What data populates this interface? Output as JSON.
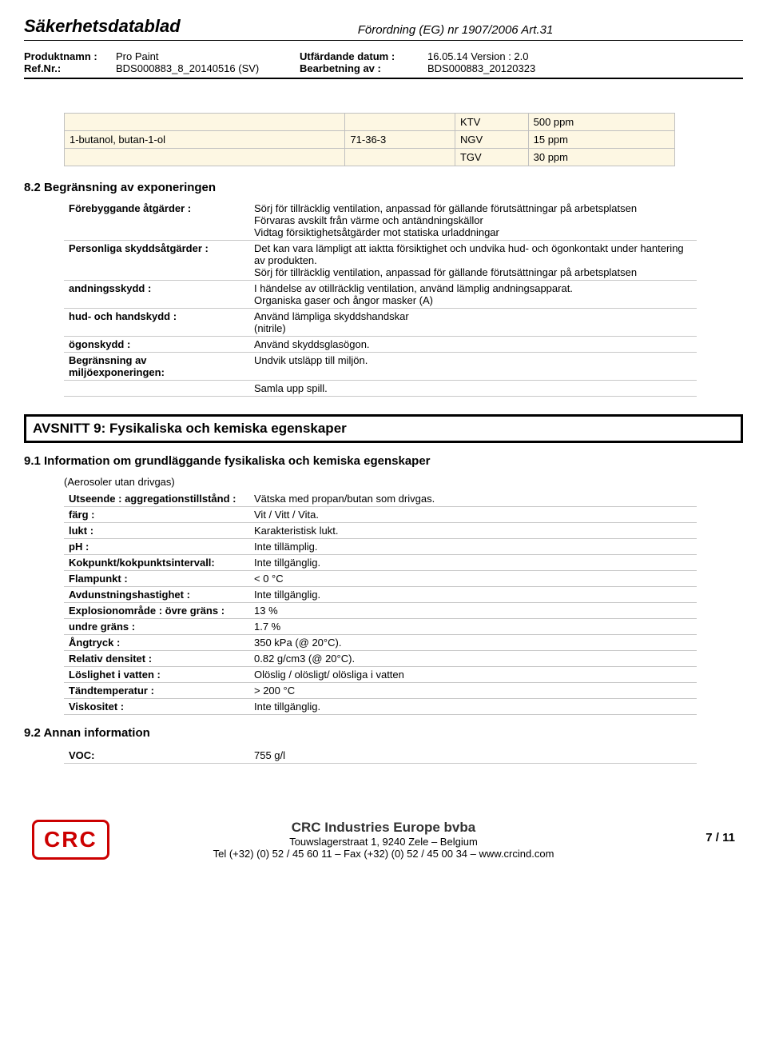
{
  "header": {
    "title": "Säkerhetsdatablad",
    "regulation": "Förordning (EG) nr 1907/2006 Art.31",
    "product_label": "Produktnamn :",
    "product": "Pro Paint",
    "ref_label": "Ref.Nr.:",
    "ref": "BDS000883_8_20140516 (SV)",
    "issue_label": "Utfärdande datum :",
    "issue": "16.05.14 Version : 2.0",
    "rev_label": "Bearbetning av :",
    "rev": "BDS000883_20120323"
  },
  "substance": {
    "r0": {
      "c1": "",
      "c2": "",
      "c3": "KTV",
      "c4": "500 ppm"
    },
    "r1": {
      "c1": "1-butanol, butan-1-ol",
      "c2": "71-36-3",
      "c3": "NGV",
      "c4": "15 ppm"
    },
    "r2": {
      "c1": "",
      "c2": "",
      "c3": "TGV",
      "c4": "30 ppm"
    }
  },
  "s82": {
    "title": "8.2 Begränsning av exponeringen",
    "rows": {
      "r0": {
        "k": "Förebyggande åtgärder :",
        "v": "Sörj för tillräcklig ventilation, anpassad för gällande förutsättningar på arbetsplatsen\nFörvaras avskilt från värme och antändningskällor\nVidtag försiktighetsåtgärder mot statiska urladdningar"
      },
      "r1": {
        "k": "Personliga skyddsåtgärder :",
        "v": "Det kan vara lämpligt att iaktta försiktighet och undvika hud- och ögonkontakt under hantering av produkten.\nSörj för tillräcklig ventilation, anpassad för gällande förutsättningar på arbetsplatsen"
      },
      "r2": {
        "k": "andningsskydd :",
        "v": "I händelse av otillräcklig ventilation, använd lämplig andningsapparat.\nOrganiska gaser och ångor masker (A)"
      },
      "r3": {
        "k": "hud- och handskydd :",
        "v": "Använd lämpliga skyddshandskar\n(nitrile)"
      },
      "r4": {
        "k": "ögonskydd :",
        "v": "Använd skyddsglasögon."
      },
      "r5": {
        "k": "Begränsning av miljöexponeringen:",
        "v": "Undvik utsläpp till miljön."
      },
      "r6": {
        "k": "",
        "v": "Samla upp spill."
      }
    }
  },
  "s9": {
    "title": "AVSNITT 9: Fysikaliska och kemiska egenskaper",
    "sub1": "9.1 Information om grundläggande fysikaliska och kemiska egenskaper",
    "note": "(Aerosoler utan drivgas)",
    "rows": {
      "r0": {
        "k": "Utseende : aggregationstillstånd :",
        "v": "Vätska med propan/butan som drivgas."
      },
      "r1": {
        "k": "färg :",
        "v": "Vit / Vitt / Vita."
      },
      "r2": {
        "k": "lukt :",
        "v": "Karakteristisk lukt."
      },
      "r3": {
        "k": "pH :",
        "v": "Inte tillämplig."
      },
      "r4": {
        "k": "Kokpunkt/kokpunktsintervall:",
        "v": "Inte tillgänglig."
      },
      "r5": {
        "k": "Flampunkt :",
        "v": "< 0 °C"
      },
      "r6": {
        "k": "Avdunstningshastighet :",
        "v": "Inte tillgänglig."
      },
      "r7": {
        "k": "Explosionområde : övre gräns :",
        "v": "13 %"
      },
      "r8": {
        "k": "undre gräns :",
        "v": "1.7 %"
      },
      "r9": {
        "k": "Ångtryck :",
        "v": "350 kPa (@ 20°C)."
      },
      "r10": {
        "k": "Relativ densitet :",
        "v": "0.82 g/cm3 (@ 20°C)."
      },
      "r11": {
        "k": "Löslighet i vatten :",
        "v": "Olöslig / olösligt/ olösliga i vatten"
      },
      "r12": {
        "k": "Tändtemperatur :",
        "v": "> 200 °C"
      },
      "r13": {
        "k": "Viskositet :",
        "v": "Inte tillgänglig."
      }
    },
    "sub2": "9.2 Annan information",
    "voc": {
      "k": "VOC:",
      "v": "755 g/l"
    }
  },
  "footer": {
    "logo": "CRC",
    "company": "CRC Industries Europe bvba",
    "addr": "Touwslagerstraat 1,  9240 Zele – Belgium",
    "tel": "Tel (+32) (0) 52 / 45 60 11 – Fax (+32) (0) 52 / 45 00 34 – www.crcind.com",
    "page": "7 / 11"
  }
}
